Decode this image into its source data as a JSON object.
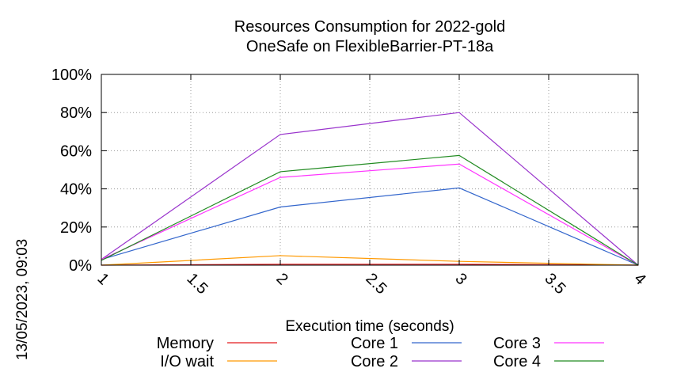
{
  "chart_data": {
    "type": "line",
    "title": "Resources Consumption for 2022-gold",
    "subtitle": "OneSafe on FlexibleBarrier-PT-18a",
    "xlabel": "Execution time (seconds)",
    "ylabel": "",
    "xlim": [
      1,
      4
    ],
    "ylim": [
      0,
      100
    ],
    "x_ticks": [
      "1",
      "1.5",
      "2",
      "2.5",
      "3",
      "3.5",
      "4"
    ],
    "y_ticks": [
      "0%",
      "20%",
      "40%",
      "60%",
      "80%",
      "100%"
    ],
    "grid": true,
    "legend_position": "bottom",
    "side_label": "13/05/2023, 09:03",
    "x": [
      1,
      2,
      3,
      4
    ],
    "series": [
      {
        "name": "Memory",
        "color": "#e41a1c",
        "values": [
          0,
          0.5,
          0.5,
          0
        ]
      },
      {
        "name": "I/O wait",
        "color": "#ff9900",
        "values": [
          0,
          5,
          2,
          0
        ]
      },
      {
        "name": "Core 1",
        "color": "#3366cc",
        "values": [
          3,
          30.5,
          40.5,
          0
        ]
      },
      {
        "name": "Core 2",
        "color": "#9933cc",
        "values": [
          3,
          68.5,
          80,
          0
        ]
      },
      {
        "name": "Core 3",
        "color": "#ff33ff",
        "values": [
          3,
          46,
          53,
          0
        ]
      },
      {
        "name": "Core 4",
        "color": "#228b22",
        "values": [
          2.5,
          49,
          57.5,
          0
        ]
      }
    ]
  }
}
